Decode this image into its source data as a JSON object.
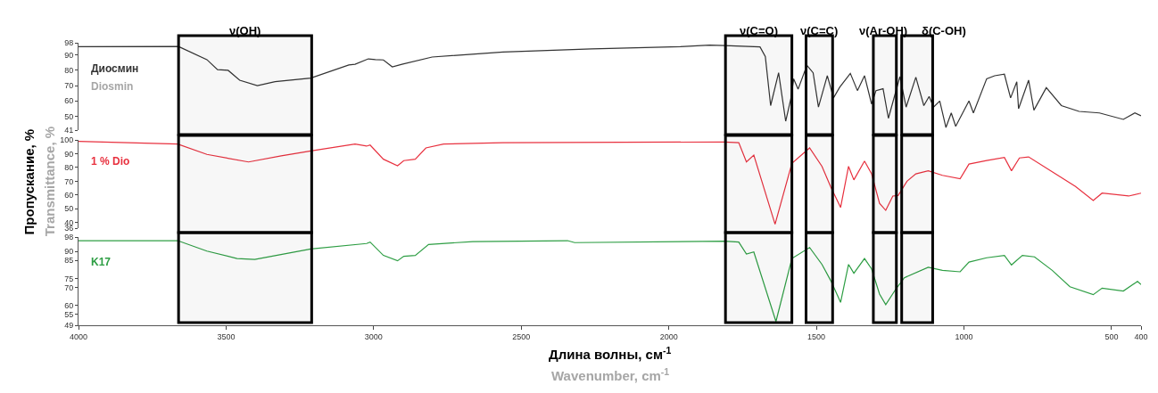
{
  "chart_data": [
    {
      "type": "line",
      "xlim": [
        4000,
        400
      ],
      "ylim": [
        41,
        98
      ],
      "yticks": [
        98,
        90,
        80,
        70,
        60,
        50,
        41
      ],
      "tick_labels": "y",
      "annotations": [
        "Diosmin"
      ],
      "bands": [
        {
          "axis": "x",
          "from": 3661,
          "to": 3210,
          "label": "ν(OH)",
          "color": "#000000"
        },
        {
          "axis": "x",
          "from": 1808,
          "to": 1583,
          "label": "ν(C=O)",
          "color": "#000000"
        },
        {
          "axis": "x",
          "from": 1535,
          "to": 1445,
          "label": "ν(C=C)",
          "color": "#000000"
        },
        {
          "axis": "x",
          "from": 1307,
          "to": 1229,
          "label": "ν(Ar-OH)",
          "color": "#000000"
        },
        {
          "axis": "x",
          "from": 1211,
          "to": 1106,
          "label": "δ(C-OH)",
          "color": "#000000"
        }
      ],
      "series": [
        {
          "name": "Диосмин",
          "color": "#333333",
          "x": [
            4000,
            3664,
            3655,
            3565,
            3529,
            3493,
            3454,
            3394,
            3334,
            3213,
            3084,
            3063,
            3018,
            2994,
            2967,
            2937,
            2904,
            2802,
            2562,
            2262,
            1961,
            1862,
            1811,
            1691,
            1673,
            1655,
            1628,
            1604,
            1586,
            1577,
            1562,
            1532,
            1511,
            1493,
            1463,
            1442,
            1421,
            1385,
            1361,
            1337,
            1313,
            1298,
            1274,
            1256,
            1217,
            1196,
            1163,
            1136,
            1118,
            1103,
            1082,
            1061,
            1043,
            1028,
            983,
            968,
            923,
            896,
            863,
            842,
            821,
            815,
            781,
            763,
            721,
            670,
            610,
            541,
            460,
            421,
            400
          ],
          "values": [
            95.5,
            95.6,
            95,
            87,
            80.5,
            80,
            73.6,
            70,
            72.6,
            75,
            83.5,
            84,
            87.5,
            87,
            86.8,
            82.3,
            84,
            88.7,
            92,
            94,
            95.5,
            96.5,
            96.2,
            95.3,
            89,
            57,
            78.4,
            46.8,
            62,
            74.5,
            67.7,
            83.3,
            78.4,
            56,
            76.5,
            62,
            69,
            78,
            66.8,
            76.5,
            58,
            66.8,
            68,
            48.7,
            75.9,
            56,
            75.5,
            57,
            63,
            56,
            60,
            42.7,
            52.2,
            43.5,
            60,
            52.2,
            74.5,
            76.5,
            77.5,
            62,
            72.6,
            55,
            73.6,
            54,
            68.7,
            57,
            53.2,
            52.2,
            48,
            52.2,
            50.3
          ]
        }
      ]
    },
    {
      "type": "line",
      "xlim": [
        4000,
        400
      ],
      "ylim": [
        36,
        100
      ],
      "yticks": [
        100,
        90,
        80,
        70,
        60,
        50,
        40,
        36
      ],
      "tick_labels": "y",
      "bands": [
        {
          "axis": "x",
          "from": 3661,
          "to": 3210,
          "color": "#000000"
        },
        {
          "axis": "x",
          "from": 1808,
          "to": 1583,
          "color": "#000000"
        },
        {
          "axis": "x",
          "from": 1535,
          "to": 1445,
          "color": "#000000"
        },
        {
          "axis": "x",
          "from": 1307,
          "to": 1229,
          "color": "#000000"
        },
        {
          "axis": "x",
          "from": 1211,
          "to": 1106,
          "color": "#000000"
        }
      ],
      "ylabel": "Пропускание, %",
      "annotations": [
        "Transmittance, %"
      ],
      "series": [
        {
          "name": "1 % Dio",
          "color": "#e8313f",
          "x": [
            4000,
            3664,
            3565,
            3424,
            3313,
            3213,
            3063,
            3024,
            3012,
            2967,
            2919,
            2898,
            2859,
            2823,
            2763,
            2562,
            1811,
            1763,
            1737,
            1712,
            1640,
            1583,
            1523,
            1481,
            1451,
            1418,
            1391,
            1373,
            1337,
            1313,
            1286,
            1265,
            1241,
            1223,
            1193,
            1163,
            1121,
            1073,
            1013,
            983,
            923,
            863,
            839,
            812,
            781,
            701,
            622,
            562,
            532,
            442,
            400
          ],
          "values": [
            99,
            97,
            89.5,
            84,
            88.4,
            92,
            97,
            95.5,
            96.3,
            86,
            81.3,
            85,
            86,
            94.2,
            97,
            98,
            98.5,
            98,
            84,
            89,
            38.8,
            83,
            94.2,
            80.8,
            65.7,
            51,
            80.8,
            71,
            84.7,
            75.4,
            54,
            48.9,
            59.3,
            59.7,
            70,
            75.4,
            77.6,
            74.3,
            71.8,
            82.5,
            85,
            87.3,
            77.6,
            86.9,
            87.7,
            76.9,
            66.2,
            56,
            61.4,
            59.3,
            61.4
          ]
        }
      ]
    },
    {
      "type": "line",
      "xlim": [
        4000,
        400
      ],
      "ylim": [
        49,
        98
      ],
      "yticks": [
        98,
        90,
        85,
        75,
        70,
        60,
        55,
        49
      ],
      "xticks": [
        4000,
        3500,
        3000,
        2500,
        2000,
        1500,
        1000,
        500,
        400
      ],
      "bands": [
        {
          "axis": "x",
          "from": 3661,
          "to": 3210,
          "color": "#000000"
        },
        {
          "axis": "x",
          "from": 1808,
          "to": 1583,
          "color": "#000000"
        },
        {
          "axis": "x",
          "from": 1535,
          "to": 1445,
          "color": "#000000"
        },
        {
          "axis": "x",
          "from": 1307,
          "to": 1229,
          "color": "#000000"
        },
        {
          "axis": "x",
          "from": 1211,
          "to": 1106,
          "color": "#000000"
        }
      ],
      "xlabel": "Длина волны, см$^{-1}$",
      "annotations": [
        "Wavenumber, cm$^{-1}$"
      ],
      "series": [
        {
          "name": "K17",
          "color": "#2e9e44",
          "x": [
            4000,
            3664,
            3565,
            3463,
            3403,
            3213,
            3024,
            3012,
            2967,
            2919,
            2898,
            2859,
            2814,
            2664,
            2343,
            2319,
            1811,
            1763,
            1737,
            1712,
            1637,
            1583,
            1523,
            1481,
            1451,
            1418,
            1391,
            1373,
            1337,
            1313,
            1286,
            1265,
            1232,
            1202,
            1121,
            1073,
            1013,
            983,
            923,
            863,
            839,
            802,
            761,
            701,
            641,
            562,
            532,
            460,
            412,
            400
          ],
          "values": [
            96,
            96,
            90.2,
            86.1,
            85.6,
            91.4,
            94.4,
            95.2,
            87.8,
            84.8,
            87.3,
            87.8,
            93.9,
            95.5,
            96,
            94.9,
            95.7,
            95.2,
            88.6,
            89.7,
            51.1,
            86.1,
            92.2,
            82.8,
            73.7,
            61.7,
            82.8,
            77.9,
            86.1,
            80.3,
            66.3,
            60.5,
            68.8,
            75.4,
            81.2,
            79.5,
            78.7,
            84.1,
            86.5,
            87.8,
            82.5,
            87.8,
            87,
            79.5,
            70.4,
            66,
            69.6,
            68,
            73.4,
            71.6
          ]
        }
      ]
    }
  ]
}
